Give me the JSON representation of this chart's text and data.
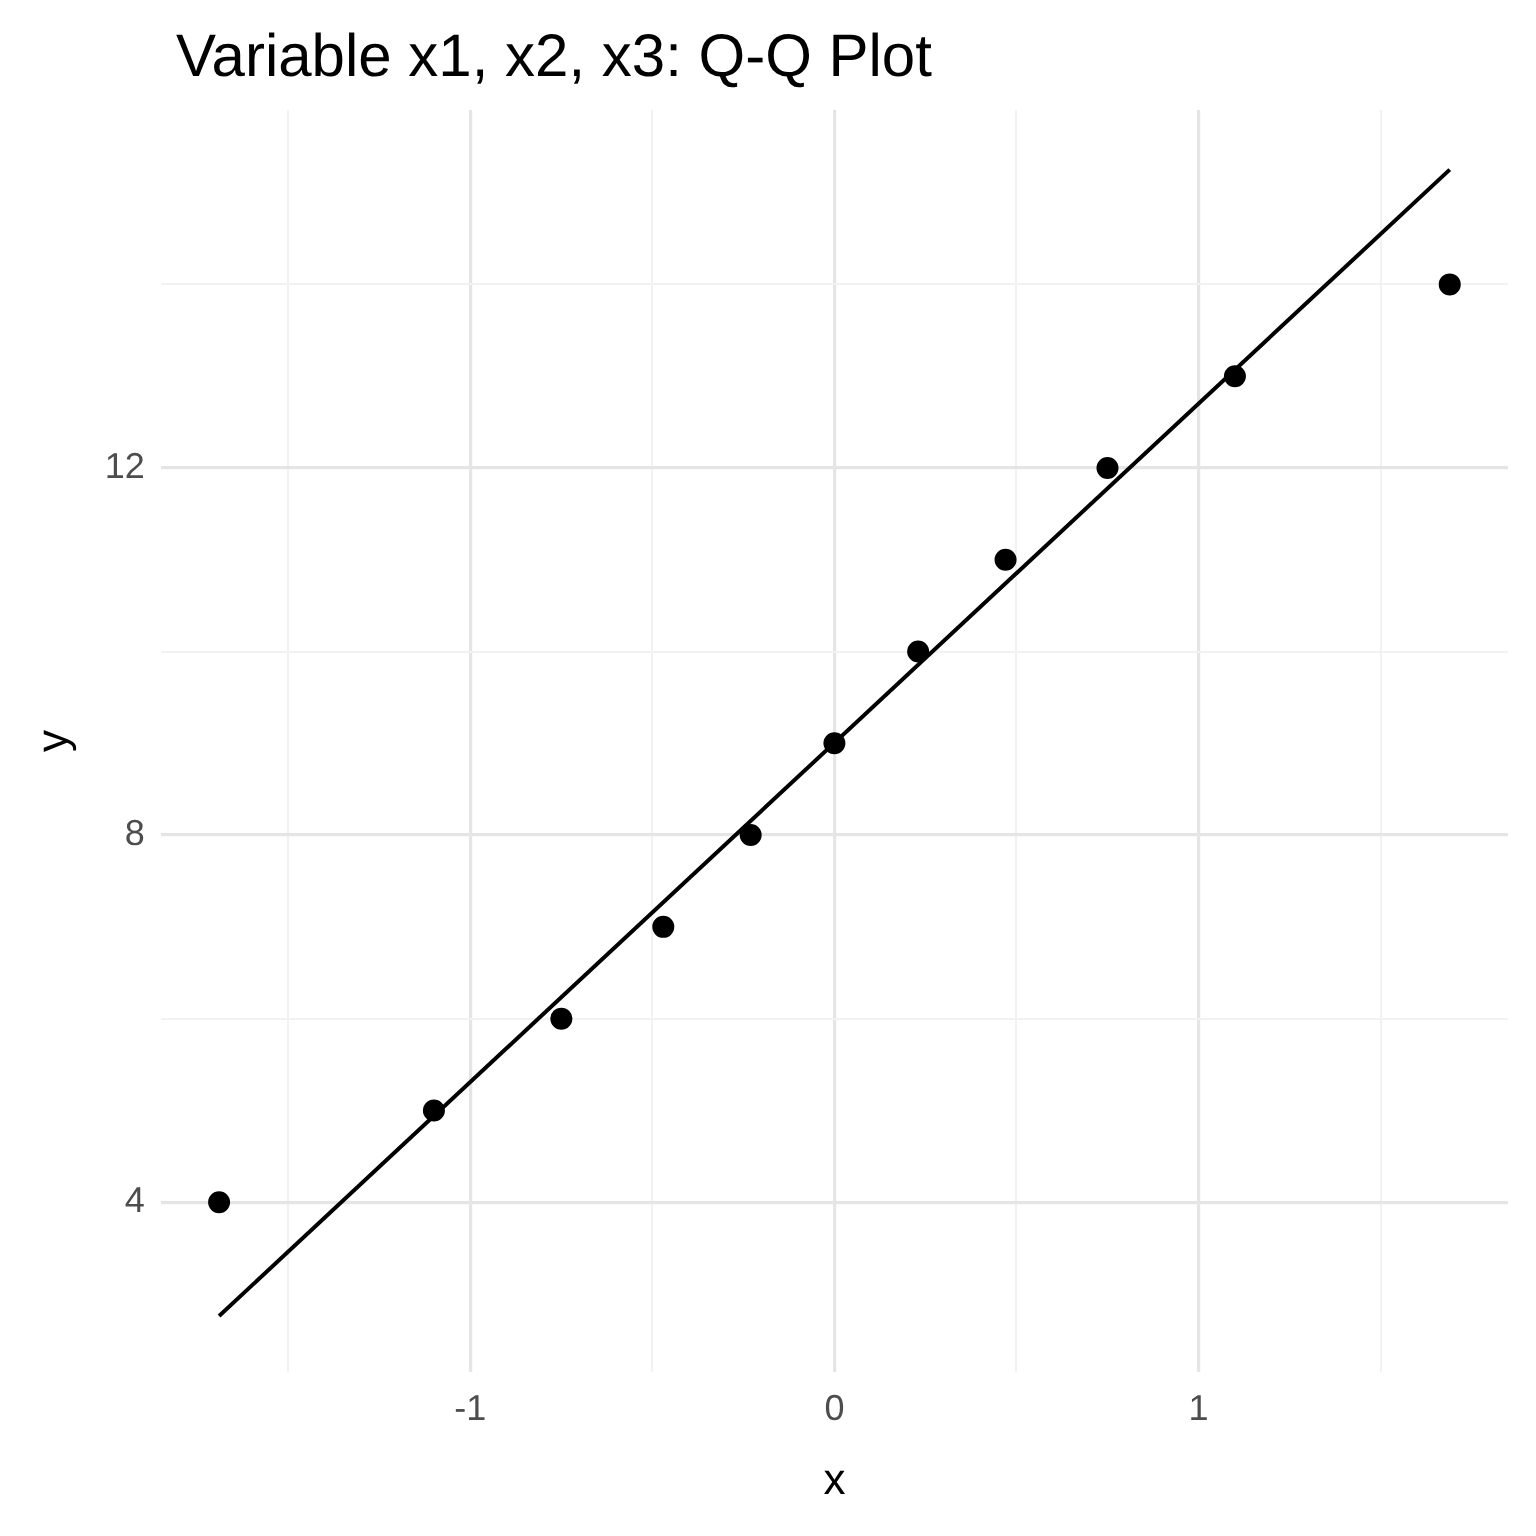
{
  "chart_data": {
    "type": "scatter",
    "title": "Variable x1, x2, x3: Q-Q Plot",
    "xlabel": "x",
    "ylabel": "y",
    "xlim": [
      -1.85,
      1.85
    ],
    "ylim": [
      2.15,
      15.9
    ],
    "xticks": [
      {
        "value": -1.5,
        "label": null
      },
      -1,
      {
        "value": -0.5,
        "label": null
      },
      0,
      {
        "value": 0.5,
        "label": null
      },
      1,
      {
        "value": 1.5,
        "label": null
      }
    ],
    "yticks": [
      4,
      {
        "value": 6,
        "label": null
      },
      8,
      {
        "value": 10,
        "label": null
      },
      12,
      {
        "value": 14,
        "label": null
      }
    ],
    "grid": true,
    "legend": false,
    "marker": "circle",
    "series": [
      {
        "type": "scatter",
        "color": "#000000",
        "x": [
          -1.69,
          -1.1,
          -0.75,
          -0.47,
          -0.23,
          0,
          0.23,
          0.47,
          0.75,
          1.1,
          1.69
        ],
        "values": [
          4,
          5,
          6,
          7,
          8,
          9,
          10,
          11,
          12,
          13,
          14
        ]
      },
      {
        "type": "line",
        "color": "#000000",
        "x": [
          -1.69,
          1.69
        ],
        "values": [
          2.76,
          15.25
        ],
        "marker": "none",
        "line_style": "solid"
      }
    ]
  }
}
